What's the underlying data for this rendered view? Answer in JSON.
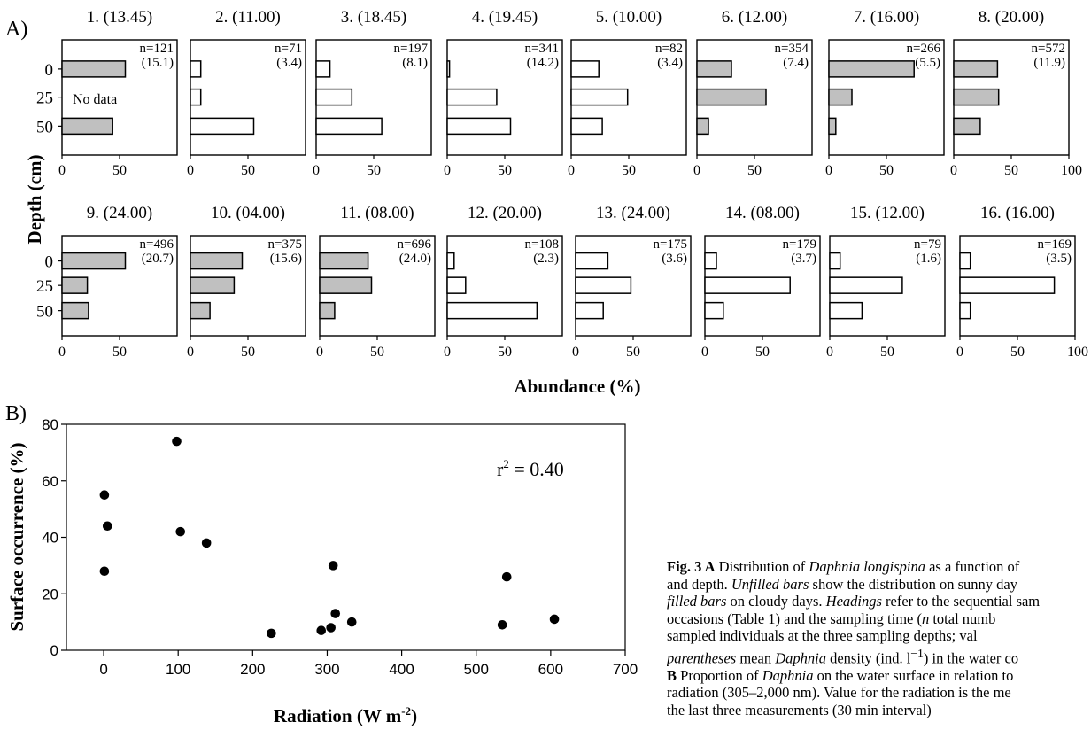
{
  "panel_a": {
    "label": "A)",
    "ylabel": "Depth (cm)",
    "xlabel": "Abundance (%)",
    "depth_ticks": [
      "0",
      "25",
      "50"
    ],
    "no_data_text": "No data",
    "colors": {
      "filled": "#c0c0c0",
      "unfilled": "#ffffff",
      "stroke": "#000000"
    }
  },
  "panel_b": {
    "label": "B)"
  },
  "chart_data": [
    {
      "type": "bar",
      "orientation": "horizontal",
      "categories": [
        "0",
        "25",
        "50"
      ],
      "xlim": [
        0,
        100
      ],
      "xticks_top_row": [
        "0",
        "50",
        "0",
        "50",
        "0",
        "50",
        "0",
        "50",
        "0",
        "50",
        "0",
        "50",
        "0",
        "50",
        "0",
        "50",
        "100"
      ],
      "xticks_bottom_row": [
        "0",
        "50",
        "0",
        "50",
        "0",
        "50",
        "0",
        "50",
        "0",
        "50",
        "0",
        "50",
        "0",
        "50",
        "0",
        "50",
        "100"
      ],
      "panels": [
        {
          "title": "1. (13.45)",
          "n": "n=121",
          "density": "(15.1)",
          "filled": true,
          "values": [
            55,
            null,
            44
          ],
          "missing_text": true
        },
        {
          "title": "2. (11.00)",
          "n": "n=71",
          "density": "(3.4)",
          "filled": false,
          "values": [
            9,
            9,
            55
          ]
        },
        {
          "title": "3. (18.45)",
          "n": "n=197",
          "density": "(8.1)",
          "filled": false,
          "values": [
            12,
            31,
            57
          ]
        },
        {
          "title": "4. (19.45)",
          "n": "n=341",
          "density": "(14.2)",
          "filled": false,
          "values": [
            2,
            43,
            55
          ]
        },
        {
          "title": "5. (10.00)",
          "n": "n=82",
          "density": "(3.4)",
          "filled": false,
          "values": [
            24,
            49,
            27
          ]
        },
        {
          "title": "6. (12.00)",
          "n": "n=354",
          "density": "(7.4)",
          "filled": true,
          "values": [
            30,
            60,
            10
          ]
        },
        {
          "title": "7. (16.00)",
          "n": "n=266",
          "density": "(5.5)",
          "filled": true,
          "values": [
            74,
            20,
            6
          ]
        },
        {
          "title": "8. (20.00)",
          "n": "n=572",
          "density": "(11.9)",
          "filled": true,
          "values": [
            38,
            39,
            23
          ]
        },
        {
          "title": "9. (24.00)",
          "n": "n=496",
          "density": "(20.7)",
          "filled": true,
          "values": [
            55,
            22,
            23
          ]
        },
        {
          "title": "10. (04.00)",
          "n": "n=375",
          "density": "(15.6)",
          "filled": true,
          "values": [
            45,
            38,
            17
          ]
        },
        {
          "title": "11. (08.00)",
          "n": "n=696",
          "density": "(24.0)",
          "filled": true,
          "values": [
            42,
            45,
            13
          ]
        },
        {
          "title": "12. (20.00)",
          "n": "n=108",
          "density": "(2.3)",
          "filled": false,
          "values": [
            6,
            16,
            78
          ]
        },
        {
          "title": "13. (24.00)",
          "n": "n=175",
          "density": "(3.6)",
          "filled": false,
          "values": [
            28,
            48,
            24
          ]
        },
        {
          "title": "14. (08.00)",
          "n": "n=179",
          "density": "(3.7)",
          "filled": false,
          "values": [
            10,
            74,
            16
          ]
        },
        {
          "title": "15. (12.00)",
          "n": "n=79",
          "density": "(1.6)",
          "filled": false,
          "values": [
            9,
            63,
            28
          ]
        },
        {
          "title": "16. (16.00)",
          "n": "n=169",
          "density": "(3.5)",
          "filled": false,
          "values": [
            9,
            82,
            9
          ]
        }
      ]
    },
    {
      "type": "scatter",
      "xlabel": "Radiation (W m",
      "xlabel_sup": "-2",
      "xlabel_tail": ")",
      "ylabel": "Surface occurrence (%)",
      "xlim": [
        -50,
        700
      ],
      "ylim": [
        0,
        80
      ],
      "xticks": [
        0,
        100,
        200,
        300,
        400,
        500,
        600,
        700
      ],
      "yticks": [
        0,
        20,
        40,
        60,
        80
      ],
      "annotation_r": "r",
      "annotation_sup": "2",
      "annotation_val": " = 0.40",
      "points": [
        {
          "x": 1,
          "y": 55
        },
        {
          "x": 5,
          "y": 44
        },
        {
          "x": 1,
          "y": 28
        },
        {
          "x": 98,
          "y": 74
        },
        {
          "x": 103,
          "y": 42
        },
        {
          "x": 138,
          "y": 38
        },
        {
          "x": 225,
          "y": 6
        },
        {
          "x": 292,
          "y": 7
        },
        {
          "x": 305,
          "y": 8
        },
        {
          "x": 308,
          "y": 30
        },
        {
          "x": 311,
          "y": 13
        },
        {
          "x": 333,
          "y": 10
        },
        {
          "x": 535,
          "y": 9
        },
        {
          "x": 541,
          "y": 26
        },
        {
          "x": 605,
          "y": 11
        }
      ]
    }
  ],
  "caption": {
    "lines": [
      [
        {
          "b": "Fig. 3 A"
        },
        {
          "t": " Distribution of "
        },
        {
          "i": "Daphnia longispina"
        },
        {
          "t": " as a function of"
        }
      ],
      [
        {
          "t": "and depth. "
        },
        {
          "i": "Unfilled bars"
        },
        {
          "t": " show the distribution on sunny day"
        }
      ],
      [
        {
          "i": "filled bars"
        },
        {
          "t": " on cloudy days. "
        },
        {
          "i": "Headings"
        },
        {
          "t": " refer to the sequential sam"
        }
      ],
      [
        {
          "t": "occasions (Table 1) and the sampling time ("
        },
        {
          "i": "n"
        },
        {
          "t": " total numb"
        }
      ],
      [
        {
          "t": "sampled individuals at the three sampling depths; val"
        }
      ],
      [
        {
          "i": "parentheses"
        },
        {
          "t": " mean "
        },
        {
          "i": "Daphnia"
        },
        {
          "t": " density (ind. l"
        },
        {
          "sup": "−1"
        },
        {
          "t": ") in the water co"
        }
      ],
      [
        {
          "b": "B"
        },
        {
          "t": " Proportion of "
        },
        {
          "i": "Daphnia"
        },
        {
          "t": " on the water surface in relation to"
        }
      ],
      [
        {
          "t": "radiation (305–2,000 nm). Value for the radiation is the me"
        }
      ],
      [
        {
          "t": "the last three measurements (30 min interval)"
        }
      ]
    ]
  }
}
